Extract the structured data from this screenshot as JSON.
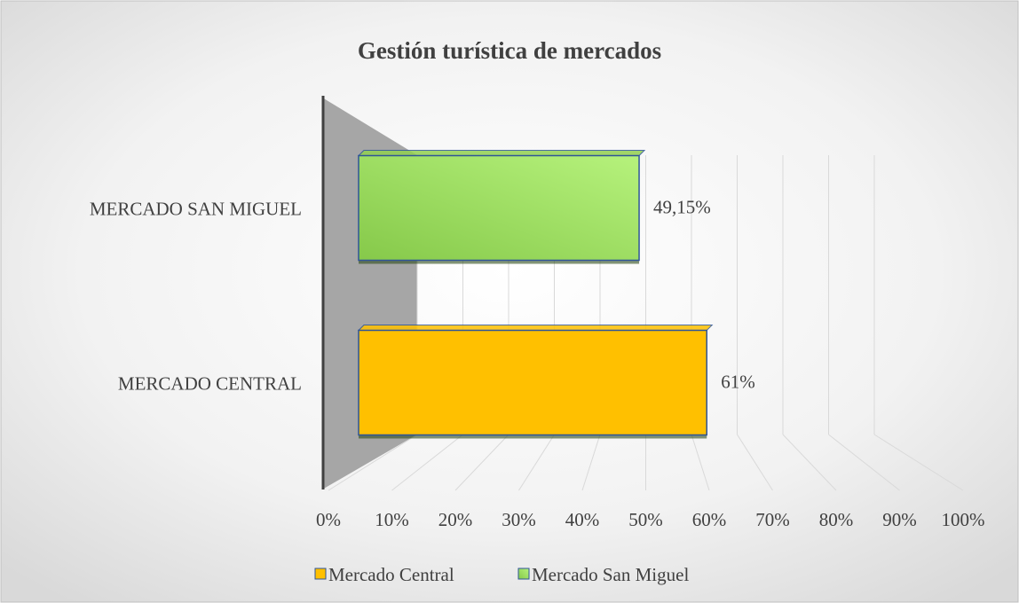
{
  "chart_data": {
    "type": "bar3d",
    "title": "Gestión turística de mercados",
    "categories": [
      "MERCADO CENTRAL",
      "MERCADO SAN MIGUEL"
    ],
    "series": [
      {
        "name": "Mercado Central",
        "color": "#ffc000",
        "values": [
          61,
          null
        ],
        "value_labels": [
          "61%",
          null
        ]
      },
      {
        "name": "Mercado San Miguel",
        "color": "#92d050",
        "values": [
          null,
          49.15
        ],
        "value_labels": [
          null,
          "49,15%"
        ]
      }
    ],
    "xlim": [
      0,
      100
    ],
    "xticks": [
      {
        "value": 0,
        "label": "0%"
      },
      {
        "value": 10,
        "label": "10%"
      },
      {
        "value": 20,
        "label": "20%"
      },
      {
        "value": 30,
        "label": "30%"
      },
      {
        "value": 40,
        "label": "40%"
      },
      {
        "value": 50,
        "label": "50%"
      },
      {
        "value": 60,
        "label": "60%"
      },
      {
        "value": 70,
        "label": "70%"
      },
      {
        "value": 80,
        "label": "80%"
      },
      {
        "value": 90,
        "label": "90%"
      },
      {
        "value": 100,
        "label": "100%"
      }
    ],
    "grid": true,
    "legend": "bottom"
  }
}
